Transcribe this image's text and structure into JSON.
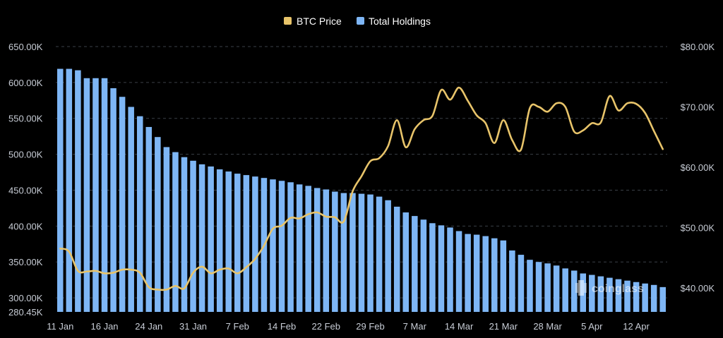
{
  "chart_data": {
    "type": "bar",
    "legend": {
      "position": "top-center",
      "items": [
        {
          "name": "BTC Price",
          "color": "#e8c46a"
        },
        {
          "name": "Total Holdings",
          "color": "#7eb6f5"
        }
      ]
    },
    "watermark": "coinglass",
    "y_left": {
      "range": [
        280450,
        650000
      ],
      "ticks": [
        300000,
        350000,
        400000,
        450000,
        500000,
        550000,
        600000,
        650000
      ],
      "tick_labels": [
        "300.00K",
        "350.00K",
        "400.00K",
        "450.00K",
        "500.00K",
        "550.00K",
        "600.00K",
        "650.00K"
      ],
      "min_label": "280.45K"
    },
    "y_right": {
      "range": [
        36000,
        80000
      ],
      "ticks": [
        40000,
        50000,
        60000,
        70000,
        80000
      ],
      "tick_labels": [
        "$40.00K",
        "$50.00K",
        "$60.00K",
        "$70.00K",
        "$80.00K"
      ]
    },
    "x_tick_labels": [
      "11 Jan",
      "16 Jan",
      "24 Jan",
      "31 Jan",
      "7 Feb",
      "14 Feb",
      "22 Feb",
      "29 Feb",
      "7 Mar",
      "14 Mar",
      "21 Mar",
      "28 Mar",
      "5 Apr",
      "12 Apr"
    ],
    "x_tick_index": [
      0,
      5,
      10,
      15,
      20,
      25,
      30,
      35,
      40,
      45,
      50,
      55,
      60,
      65
    ],
    "grid": true,
    "series": [
      {
        "name": "Total Holdings",
        "type": "bar",
        "axis": "left",
        "color": "#7eb6f5",
        "values": [
          619000,
          619000,
          617000,
          606000,
          606000,
          606000,
          592000,
          580000,
          566000,
          553000,
          538000,
          524000,
          510000,
          503000,
          496000,
          491000,
          486000,
          483000,
          479000,
          476000,
          473000,
          471000,
          469000,
          467000,
          465000,
          463000,
          461000,
          458000,
          456000,
          453000,
          451000,
          448000,
          446000,
          446000,
          445000,
          444000,
          441000,
          436000,
          427000,
          419000,
          414000,
          409000,
          404000,
          401000,
          398000,
          393000,
          389000,
          388000,
          386000,
          383000,
          380000,
          366000,
          360000,
          353000,
          350000,
          348000,
          345000,
          341000,
          338000,
          334000,
          332000,
          330000,
          328000,
          326000,
          324000,
          322000,
          320000,
          318000,
          315000
        ]
      },
      {
        "name": "BTC Price",
        "type": "line",
        "axis": "right",
        "color": "#e8c46a",
        "values": [
          46500,
          46000,
          42800,
          42700,
          42800,
          42400,
          42500,
          43000,
          43000,
          42500,
          40100,
          39700,
          39700,
          40300,
          39900,
          42500,
          43500,
          42400,
          43000,
          43200,
          42400,
          43400,
          44800,
          47000,
          49800,
          50300,
          51600,
          51500,
          52200,
          52500,
          51800,
          51700,
          51000,
          56000,
          58500,
          61000,
          61500,
          63500,
          67800,
          63300,
          66300,
          67800,
          68500,
          72800,
          71200,
          73200,
          71000,
          68600,
          67300,
          64000,
          67800,
          64500,
          62900,
          69800,
          70000,
          69200,
          70600,
          70000,
          65900,
          66100,
          67300,
          67400,
          71800,
          69400,
          70600,
          70500,
          69000,
          66000,
          63000
        ]
      }
    ]
  }
}
